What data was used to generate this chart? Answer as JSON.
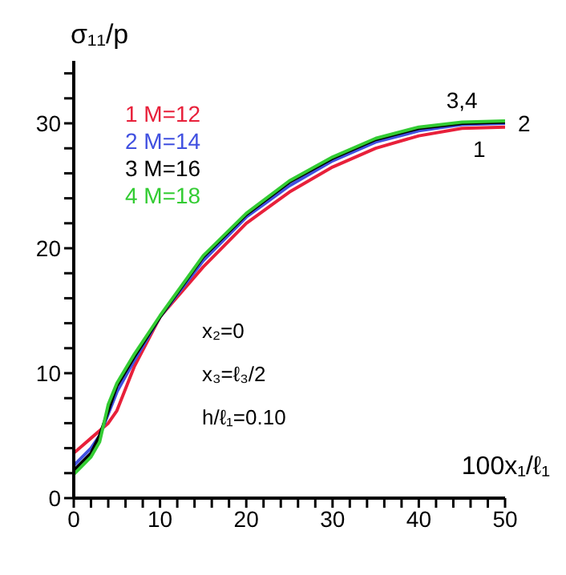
{
  "chart_data": {
    "type": "line",
    "ylabel": "σ₁₁/p",
    "xlabel": "100x₁/ℓ₁",
    "xlim": [
      0,
      50
    ],
    "ylim": [
      0,
      35
    ],
    "xticks": [
      0,
      {
        "value": 2,
        "label": null
      },
      {
        "value": 4,
        "label": null
      },
      {
        "value": 6,
        "label": null
      },
      {
        "value": 8,
        "label": null
      },
      10,
      {
        "value": 12,
        "label": null
      },
      {
        "value": 14,
        "label": null
      },
      {
        "value": 16,
        "label": null
      },
      {
        "value": 18,
        "label": null
      },
      20,
      {
        "value": 22,
        "label": null
      },
      {
        "value": 24,
        "label": null
      },
      {
        "value": 26,
        "label": null
      },
      {
        "value": 28,
        "label": null
      },
      30,
      {
        "value": 32,
        "label": null
      },
      {
        "value": 34,
        "label": null
      },
      {
        "value": 36,
        "label": null
      },
      {
        "value": 38,
        "label": null
      },
      40,
      {
        "value": 42,
        "label": null
      },
      {
        "value": 44,
        "label": null
      },
      {
        "value": 46,
        "label": null
      },
      {
        "value": 48,
        "label": null
      },
      50
    ],
    "yticks": [
      0,
      {
        "value": 2,
        "label": null
      },
      {
        "value": 4,
        "label": null
      },
      {
        "value": 6,
        "label": null
      },
      {
        "value": 8,
        "label": null
      },
      10,
      {
        "value": 12,
        "label": null
      },
      {
        "value": 14,
        "label": null
      },
      {
        "value": 16,
        "label": null
      },
      {
        "value": 18,
        "label": null
      },
      20,
      {
        "value": 22,
        "label": null
      },
      {
        "value": 24,
        "label": null
      },
      {
        "value": 26,
        "label": null
      },
      {
        "value": 28,
        "label": null
      },
      30,
      {
        "value": 32,
        "label": null
      },
      {
        "value": 34,
        "label": null
      }
    ],
    "legend": "top left",
    "marker": "none",
    "line_style": "solid",
    "series": [
      {
        "name": "1 M=12",
        "color": "#e8203a",
        "x": [
          0,
          2,
          4,
          5,
          7,
          10,
          15,
          20,
          25,
          30,
          35,
          40,
          45,
          50
        ],
        "values": [
          3.6,
          4.8,
          6,
          7,
          10.5,
          14.5,
          18.5,
          22,
          24.5,
          26.5,
          28,
          29,
          29.6,
          29.7
        ]
      },
      {
        "name": "2 M=14",
        "color": "#4050e0",
        "x": [
          0,
          2,
          3,
          5,
          7,
          10,
          15,
          20,
          25,
          30,
          35,
          40,
          45,
          50
        ],
        "values": [
          2.6,
          4,
          5,
          8.5,
          11,
          14.5,
          19,
          22.5,
          25,
          27,
          28.5,
          29.4,
          29.9,
          30
        ]
      },
      {
        "name": "3 M=16",
        "color": "#000000",
        "x": [
          0,
          2,
          3,
          5,
          7,
          10,
          15,
          20,
          25,
          30,
          35,
          40,
          45,
          50
        ],
        "values": [
          2.2,
          3.6,
          5,
          9,
          11.3,
          14.5,
          19.3,
          22.7,
          25.3,
          27.2,
          28.7,
          29.6,
          30,
          30.1
        ]
      },
      {
        "name": "4 M=18",
        "color": "#33cc33",
        "x": [
          0,
          2,
          3,
          4,
          5,
          7,
          10,
          15,
          20,
          25,
          30,
          35,
          40,
          45,
          50
        ],
        "values": [
          1.9,
          3.3,
          4.5,
          7.5,
          9.2,
          11.5,
          14.6,
          19.4,
          22.8,
          25.4,
          27.3,
          28.8,
          29.7,
          30.1,
          30.2
        ]
      }
    ],
    "annotations": [
      {
        "text": "3,4",
        "x": 45,
        "y": 30.2
      },
      {
        "text": "2",
        "x": 50,
        "y": 30
      },
      {
        "text": "1",
        "x": 47,
        "y": 29.6
      },
      "x₂=0",
      "x₃=ℓ₃/2",
      "h/ℓ₁=0.10"
    ]
  }
}
